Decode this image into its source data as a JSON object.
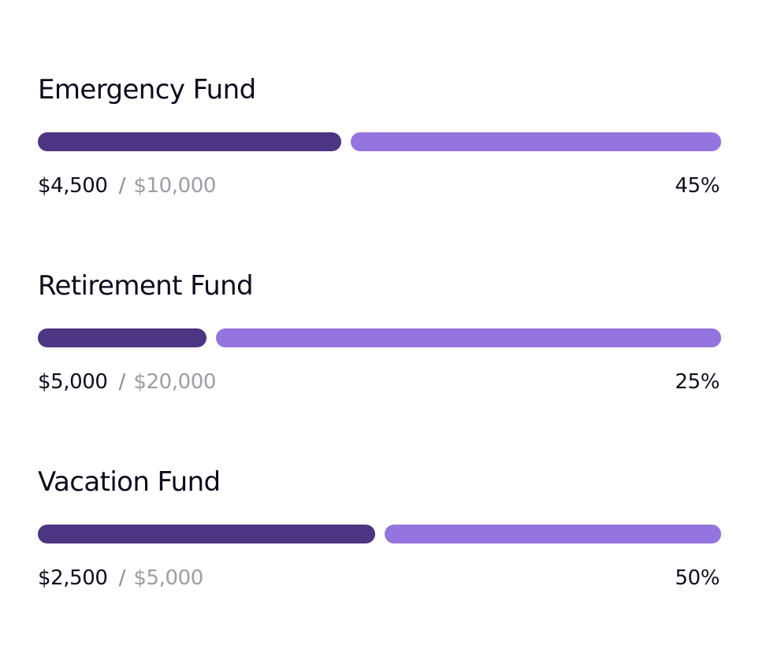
{
  "colors": {
    "filled": "#4c3582",
    "remaining": "#9474de",
    "text_primary": "#0f0c1d",
    "text_muted": "#9e9ca6"
  },
  "separator": "/",
  "goals": [
    {
      "title": "Emergency Fund",
      "current": "$4,500",
      "target": "$10,000",
      "percent": "45%",
      "progress": 0.45
    },
    {
      "title": "Retirement Fund",
      "current": "$5,000",
      "target": "$20,000",
      "percent": "25%",
      "progress": 0.25
    },
    {
      "title": "Vacation Fund",
      "current": "$2,500",
      "target": "$5,000",
      "percent": "50%",
      "progress": 0.5
    }
  ]
}
